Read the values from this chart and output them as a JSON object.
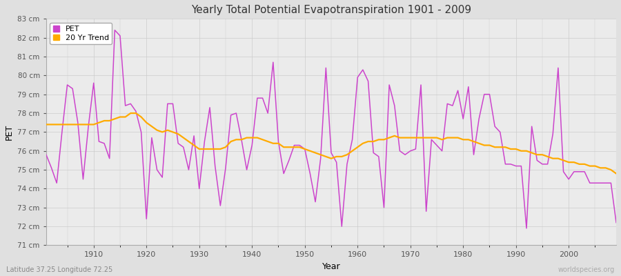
{
  "title": "Yearly Total Potential Evapotranspiration 1901 - 2009",
  "xlabel": "Year",
  "ylabel": "PET",
  "subtitle": "Latitude 37.25 Longitude 72.25",
  "watermark": "worldspecies.org",
  "pet_color": "#cc44cc",
  "trend_color": "#ffaa00",
  "ylim_min": 71,
  "ylim_max": 83,
  "years": [
    1901,
    1902,
    1903,
    1904,
    1905,
    1906,
    1907,
    1908,
    1909,
    1910,
    1911,
    1912,
    1913,
    1914,
    1915,
    1916,
    1917,
    1918,
    1919,
    1920,
    1921,
    1922,
    1923,
    1924,
    1925,
    1926,
    1927,
    1928,
    1929,
    1930,
    1931,
    1932,
    1933,
    1934,
    1935,
    1936,
    1937,
    1938,
    1939,
    1940,
    1941,
    1942,
    1943,
    1944,
    1945,
    1946,
    1947,
    1948,
    1949,
    1950,
    1951,
    1952,
    1953,
    1954,
    1955,
    1956,
    1957,
    1958,
    1959,
    1960,
    1961,
    1962,
    1963,
    1964,
    1965,
    1966,
    1967,
    1968,
    1969,
    1970,
    1971,
    1972,
    1973,
    1974,
    1975,
    1976,
    1977,
    1978,
    1979,
    1980,
    1981,
    1982,
    1983,
    1984,
    1985,
    1986,
    1987,
    1988,
    1989,
    1990,
    1991,
    1992,
    1993,
    1994,
    1995,
    1996,
    1997,
    1998,
    1999,
    2000,
    2001,
    2002,
    2003,
    2004,
    2005,
    2006,
    2007,
    2008,
    2009
  ],
  "pet": [
    75.8,
    75.1,
    74.3,
    77.0,
    79.5,
    79.3,
    77.5,
    74.5,
    77.3,
    79.6,
    76.5,
    76.4,
    75.6,
    82.4,
    82.1,
    78.4,
    78.5,
    78.1,
    77.0,
    72.4,
    76.7,
    75.0,
    74.6,
    78.5,
    78.5,
    76.4,
    76.2,
    75.0,
    76.8,
    74.0,
    76.5,
    78.3,
    75.2,
    73.1,
    75.1,
    77.9,
    78.0,
    76.6,
    75.0,
    76.3,
    78.8,
    78.8,
    78.0,
    80.7,
    76.5,
    74.8,
    75.5,
    76.3,
    76.3,
    76.1,
    74.8,
    73.3,
    75.6,
    80.4,
    75.9,
    75.4,
    72.0,
    75.3,
    76.6,
    79.9,
    80.3,
    79.7,
    75.9,
    75.7,
    73.0,
    79.5,
    78.4,
    76.0,
    75.8,
    76.0,
    76.1,
    79.5,
    72.8,
    76.6,
    76.3,
    76.0,
    78.5,
    78.4,
    79.2,
    77.7,
    79.4,
    75.8,
    77.7,
    79.0,
    79.0,
    77.3,
    77.0,
    75.3,
    75.3,
    75.2,
    75.2,
    71.9,
    77.3,
    75.5,
    75.3,
    75.3,
    76.9,
    80.4,
    74.9,
    74.5,
    74.9,
    74.9,
    74.9,
    74.3,
    74.3,
    74.3,
    74.3,
    74.3,
    72.2
  ],
  "trend": [
    77.4,
    77.4,
    77.4,
    77.4,
    77.4,
    77.4,
    77.4,
    77.4,
    77.4,
    77.4,
    77.5,
    77.6,
    77.6,
    77.7,
    77.8,
    77.8,
    78.0,
    78.0,
    77.8,
    77.5,
    77.3,
    77.1,
    77.0,
    77.1,
    77.0,
    76.9,
    76.7,
    76.5,
    76.3,
    76.1,
    76.1,
    76.1,
    76.1,
    76.1,
    76.2,
    76.5,
    76.6,
    76.6,
    76.7,
    76.7,
    76.7,
    76.6,
    76.5,
    76.4,
    76.4,
    76.2,
    76.2,
    76.2,
    76.2,
    76.1,
    76.0,
    75.9,
    75.8,
    75.7,
    75.6,
    75.7,
    75.7,
    75.8,
    76.0,
    76.2,
    76.4,
    76.5,
    76.5,
    76.6,
    76.6,
    76.7,
    76.8,
    76.7,
    76.7,
    76.7,
    76.7,
    76.7,
    76.7,
    76.7,
    76.7,
    76.6,
    76.7,
    76.7,
    76.7,
    76.6,
    76.6,
    76.5,
    76.4,
    76.3,
    76.3,
    76.2,
    76.2,
    76.2,
    76.1,
    76.1,
    76.0,
    76.0,
    75.9,
    75.8,
    75.8,
    75.7,
    75.6,
    75.6,
    75.5,
    75.4,
    75.4,
    75.3,
    75.3,
    75.2,
    75.2,
    75.1,
    75.1,
    75.0,
    74.8
  ]
}
